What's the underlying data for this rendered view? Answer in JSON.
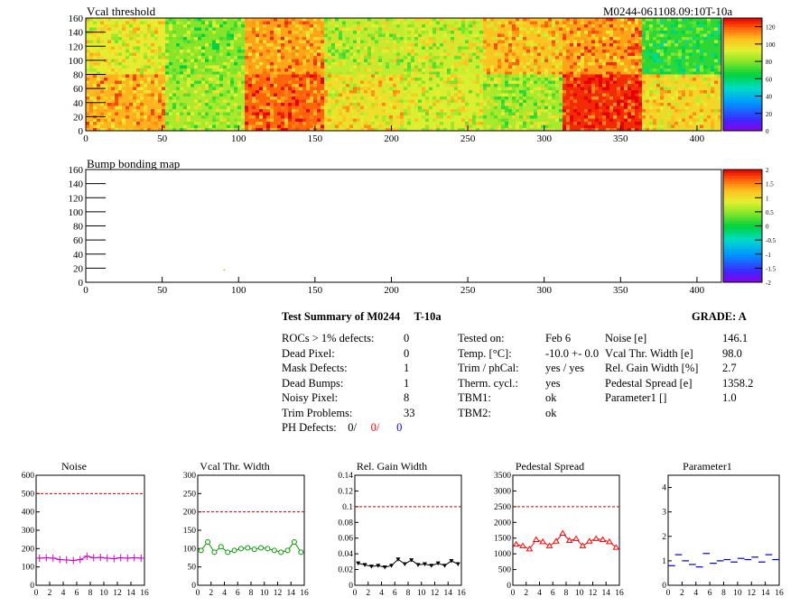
{
  "top_title_left": "Vcal threshold",
  "top_title_right": "M0244-061108.09:10T-10a",
  "map_xticks": [
    "0",
    "50",
    "100",
    "150",
    "200",
    "250",
    "300",
    "350",
    "400"
  ],
  "map_yticks": [
    "0",
    "20",
    "40",
    "60",
    "80",
    "100",
    "120",
    "140",
    "160"
  ],
  "vcal_colorbar_ticks": [
    "0",
    "20",
    "40",
    "60",
    "80",
    "100",
    "120"
  ],
  "bump_title": "Bump bonding map",
  "bump_colorbar_ticks": [
    "-2",
    "-1.5",
    "-1",
    "-0.5",
    "0",
    "0.5",
    "1",
    "1.5",
    "2"
  ],
  "summary": {
    "title": "Test Summary of M0244",
    "test": "T-10a",
    "grade": "GRADE:  A",
    "left_rows": [
      {
        "label": "ROCs > 1% defects:",
        "value": "0"
      },
      {
        "label": "Dead Pixel:",
        "value": "0"
      },
      {
        "label": "Mask Defects:",
        "value": "1"
      },
      {
        "label": "Dead Bumps:",
        "value": "1"
      },
      {
        "label": "Noisy Pixel:",
        "value": "8"
      },
      {
        "label": "Trim Problems:",
        "value": "33"
      }
    ],
    "ph_label": "PH Defects:",
    "ph_values": [
      "0/",
      "0/",
      "0"
    ],
    "ph_colors": [
      "#000000",
      "#ff0000",
      "#0000ff"
    ],
    "mid_rows": [
      {
        "label": "Tested on:",
        "value": "Feb 6"
      },
      {
        "label": "Temp. [°C]:",
        "value": "-10.0 +- 0.0"
      },
      {
        "label": "Trim / phCal:",
        "value": "yes / yes"
      },
      {
        "label": "Therm. cycl.:",
        "value": "yes"
      },
      {
        "label": "TBM1:",
        "value": "ok"
      },
      {
        "label": "TBM2:",
        "value": "ok"
      }
    ],
    "right_rows": [
      {
        "label": "Noise [e]",
        "value": "146.1"
      },
      {
        "label": "Vcal Thr. Width [e]",
        "value": "98.0"
      },
      {
        "label": "Rel. Gain Width [%]",
        "value": "2.7"
      },
      {
        "label": "Pedestal Spread [e]",
        "value": "1358.2"
      },
      {
        "label": "Parameter1 []",
        "value": "1.0"
      }
    ]
  },
  "chart_data": [
    {
      "type": "heatmap",
      "title": "Vcal threshold",
      "xlim": [
        0,
        416
      ],
      "ylim": [
        0,
        160
      ],
      "roc_grid": {
        "cols": 8,
        "rows": 2,
        "roc_width": 52,
        "roc_height": 80
      },
      "roc_mean_values": {
        "top": [
          95,
          80,
          110,
          88,
          90,
          105,
          110,
          70
        ],
        "bottom": [
          108,
          85,
          118,
          98,
          92,
          85,
          125,
          100
        ]
      },
      "colorbar": {
        "min": 0,
        "max": 130,
        "ticks": [
          0,
          20,
          40,
          60,
          80,
          100,
          120
        ]
      }
    },
    {
      "type": "heatmap",
      "title": "Bump bonding map",
      "xlim": [
        0,
        416
      ],
      "ylim": [
        0,
        160
      ],
      "points": [
        {
          "x": 90,
          "y": 17,
          "value": 0.5
        }
      ],
      "colorbar": {
        "min": -2,
        "max": 2,
        "ticks": [
          -2,
          -1.5,
          -1,
          -0.5,
          0,
          0.5,
          1,
          1.5,
          2
        ]
      }
    },
    {
      "type": "line",
      "title": "Noise",
      "x": [
        0,
        1,
        2,
        3,
        4,
        5,
        6,
        7,
        8,
        9,
        10,
        11,
        12,
        13,
        14,
        15
      ],
      "values": [
        148,
        150,
        148,
        140,
        138,
        135,
        140,
        158,
        150,
        152,
        148,
        145,
        150,
        148,
        150,
        148
      ],
      "xlim": [
        0,
        16
      ],
      "ylim": [
        0,
        600
      ],
      "yticks": [
        "0",
        "100",
        "200",
        "300",
        "400",
        "500",
        "600"
      ],
      "xticks": [
        "0",
        "2",
        "4",
        "6",
        "8",
        "10",
        "12",
        "14",
        "16"
      ],
      "limit": 500,
      "color": "#cc00cc",
      "marker": "cross"
    },
    {
      "type": "line",
      "title": "Vcal Thr. Width",
      "x": [
        0,
        1,
        2,
        3,
        4,
        5,
        6,
        7,
        8,
        9,
        10,
        11,
        12,
        13,
        14,
        15
      ],
      "values": [
        95,
        118,
        90,
        105,
        90,
        95,
        100,
        102,
        98,
        102,
        100,
        95,
        90,
        95,
        118,
        90
      ],
      "xlim": [
        0,
        16
      ],
      "ylim": [
        0,
        300
      ],
      "yticks": [
        "0",
        "50",
        "100",
        "150",
        "200",
        "250",
        "300"
      ],
      "xticks": [
        "0",
        "2",
        "4",
        "6",
        "8",
        "10",
        "12",
        "14",
        "16"
      ],
      "limit": 200,
      "color": "#009900",
      "marker": "circle"
    },
    {
      "type": "line",
      "title": "Rel. Gain Width",
      "x": [
        0,
        1,
        2,
        3,
        4,
        5,
        6,
        7,
        8,
        9,
        10,
        11,
        12,
        13,
        14,
        15
      ],
      "values": [
        0.028,
        0.026,
        0.024,
        0.025,
        0.023,
        0.025,
        0.033,
        0.027,
        0.032,
        0.026,
        0.027,
        0.025,
        0.028,
        0.025,
        0.031,
        0.027
      ],
      "xlim": [
        0,
        16
      ],
      "ylim": [
        0,
        0.14
      ],
      "yticks": [
        "0",
        "0.02",
        "0.04",
        "0.06",
        "0.08",
        "0.1",
        "0.12",
        "0.14"
      ],
      "xticks": [
        "0",
        "2",
        "4",
        "6",
        "8",
        "10",
        "12",
        "14",
        "16"
      ],
      "limit": 0.1,
      "color": "#000000",
      "marker": "triangle-down"
    },
    {
      "type": "line",
      "title": "Pedestal Spread",
      "x": [
        0,
        1,
        2,
        3,
        4,
        5,
        6,
        7,
        8,
        9,
        10,
        11,
        12,
        13,
        14,
        15
      ],
      "values": [
        1300,
        1250,
        1150,
        1450,
        1380,
        1250,
        1400,
        1650,
        1420,
        1480,
        1250,
        1400,
        1480,
        1450,
        1380,
        1200
      ],
      "xlim": [
        0,
        16
      ],
      "ylim": [
        0,
        3500
      ],
      "yticks": [
        "0",
        "500",
        "1000",
        "1500",
        "2000",
        "2500",
        "3000",
        "3500"
      ],
      "xticks": [
        "0",
        "2",
        "4",
        "6",
        "8",
        "10",
        "12",
        "14",
        "16"
      ],
      "limit": 2500,
      "color": "#ff0000",
      "marker": "triangle"
    },
    {
      "type": "line",
      "title": "Parameter1",
      "x": [
        0,
        1,
        2,
        3,
        4,
        5,
        6,
        7,
        8,
        9,
        10,
        11,
        12,
        13,
        14,
        15
      ],
      "values": [
        0.8,
        1.25,
        1.0,
        0.85,
        0.75,
        1.3,
        0.9,
        1.0,
        1.05,
        0.95,
        1.1,
        1.05,
        1.15,
        0.95,
        1.25,
        1.05
      ],
      "xlim": [
        0,
        16
      ],
      "ylim": [
        0,
        4.5
      ],
      "yticks": [
        "0",
        "1",
        "2",
        "3",
        "4"
      ],
      "xticks": [
        "0",
        "2",
        "4",
        "6",
        "8",
        "10",
        "12",
        "14",
        "16"
      ],
      "limit": null,
      "color": "#0000cc",
      "marker": "hline"
    }
  ]
}
